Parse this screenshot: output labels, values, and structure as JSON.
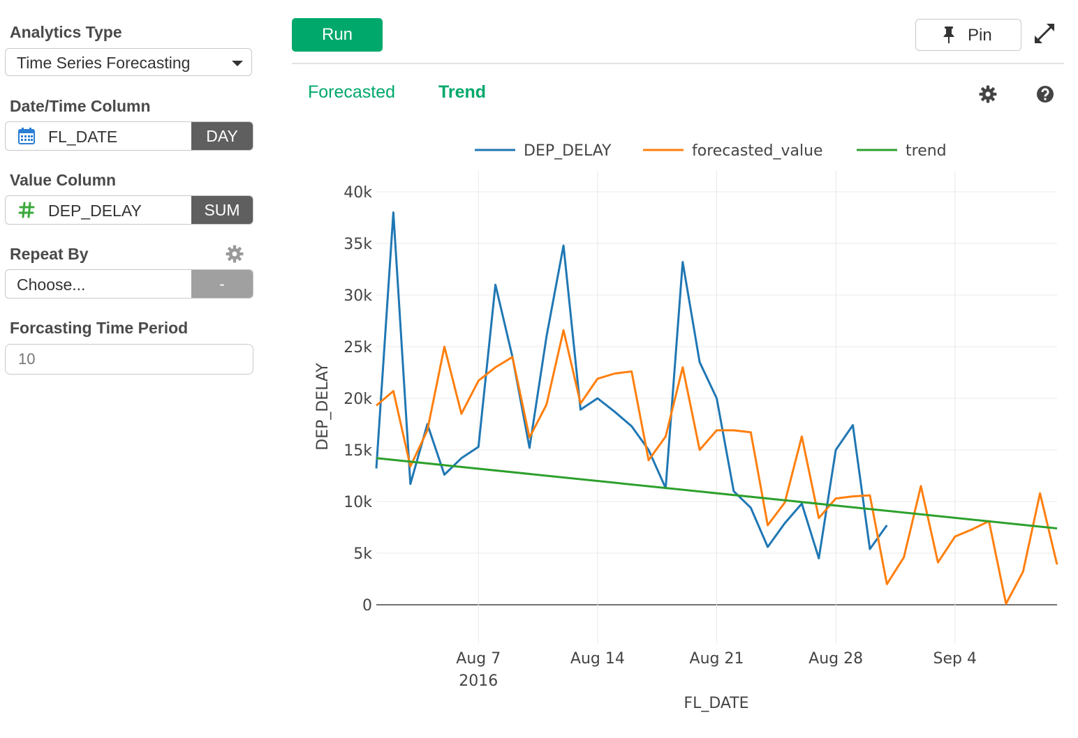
{
  "sidebar": {
    "analytics_type": {
      "label": "Analytics Type",
      "value": "Time Series Forecasting"
    },
    "datetime_column": {
      "label": "Date/Time Column",
      "value": "FL_DATE",
      "aggregation": "DAY",
      "icon": "calendar-icon"
    },
    "value_column": {
      "label": "Value Column",
      "value": "DEP_DELAY",
      "aggregation": "SUM",
      "icon": "hash-icon"
    },
    "repeat_by": {
      "label": "Repeat By",
      "value": "Choose...",
      "aggregation": "-"
    },
    "forecast_period": {
      "label": "Forcasting Time Period",
      "placeholder": "10"
    }
  },
  "toolbar": {
    "run_label": "Run",
    "pin_label": "Pin"
  },
  "tabs": [
    {
      "label": "Forecasted",
      "active": false
    },
    {
      "label": "Trend",
      "active": true
    }
  ],
  "colors": {
    "accent": "#00a86b",
    "series": [
      "#1f77b4",
      "#ff7f0e",
      "#2ca02c"
    ]
  },
  "chart_data": {
    "type": "line",
    "xlabel": "FL_DATE",
    "ylabel": "DEP_DELAY",
    "ylim": [
      0,
      40000
    ],
    "yticks": [
      0,
      5000,
      10000,
      15000,
      20000,
      25000,
      30000,
      35000,
      40000
    ],
    "ytick_labels": [
      "0",
      "5k",
      "10k",
      "15k",
      "20k",
      "25k",
      "30k",
      "35k",
      "40k"
    ],
    "xlim": [
      "2016-08-01",
      "2016-09-10"
    ],
    "xticks": [
      {
        "date": "2016-08-07",
        "label": "Aug 7",
        "sub": "2016"
      },
      {
        "date": "2016-08-14",
        "label": "Aug 14",
        "sub": ""
      },
      {
        "date": "2016-08-21",
        "label": "Aug 21",
        "sub": ""
      },
      {
        "date": "2016-08-28",
        "label": "Aug 28",
        "sub": ""
      },
      {
        "date": "2016-09-04",
        "label": "Sep 4",
        "sub": ""
      }
    ],
    "grid": true,
    "legend_position": "top",
    "series": [
      {
        "name": "DEP_DELAY",
        "x": [
          "2016-08-01",
          "2016-08-02",
          "2016-08-03",
          "2016-08-04",
          "2016-08-05",
          "2016-08-06",
          "2016-08-07",
          "2016-08-08",
          "2016-08-09",
          "2016-08-10",
          "2016-08-11",
          "2016-08-12",
          "2016-08-13",
          "2016-08-14",
          "2016-08-15",
          "2016-08-16",
          "2016-08-17",
          "2016-08-18",
          "2016-08-19",
          "2016-08-20",
          "2016-08-21",
          "2016-08-22",
          "2016-08-23",
          "2016-08-24",
          "2016-08-25",
          "2016-08-26",
          "2016-08-27",
          "2016-08-28",
          "2016-08-29",
          "2016-08-30",
          "2016-08-31"
        ],
        "values": [
          13200,
          38000,
          11700,
          17500,
          12600,
          14200,
          15300,
          31000,
          24000,
          15200,
          26000,
          34800,
          18900,
          20000,
          18700,
          17300,
          15000,
          11300,
          33200,
          23500,
          20000,
          11000,
          9400,
          5600,
          7900,
          9800,
          4500,
          15000,
          17400,
          5400,
          7700
        ]
      },
      {
        "name": "forecasted_value",
        "x": [
          "2016-08-01",
          "2016-08-02",
          "2016-08-03",
          "2016-08-04",
          "2016-08-05",
          "2016-08-06",
          "2016-08-07",
          "2016-08-08",
          "2016-08-09",
          "2016-08-10",
          "2016-08-11",
          "2016-08-12",
          "2016-08-13",
          "2016-08-14",
          "2016-08-15",
          "2016-08-16",
          "2016-08-17",
          "2016-08-18",
          "2016-08-19",
          "2016-08-20",
          "2016-08-21",
          "2016-08-22",
          "2016-08-23",
          "2016-08-24",
          "2016-08-25",
          "2016-08-26",
          "2016-08-27",
          "2016-08-28",
          "2016-08-29",
          "2016-08-30",
          "2016-08-31",
          "2016-09-01",
          "2016-09-02",
          "2016-09-03",
          "2016-09-04",
          "2016-09-05",
          "2016-09-06",
          "2016-09-07",
          "2016-09-08",
          "2016-09-09",
          "2016-09-10"
        ],
        "values": [
          19300,
          20700,
          13400,
          16900,
          25000,
          18500,
          21700,
          23000,
          24000,
          16200,
          19400,
          26600,
          19500,
          21900,
          22400,
          22600,
          14000,
          16300,
          23000,
          15000,
          16900,
          16900,
          16700,
          7700,
          9900,
          16300,
          8400,
          10300,
          10500,
          10600,
          2000,
          4600,
          11500,
          4100,
          6600,
          7300,
          8100,
          100,
          3200,
          10800,
          3900
        ]
      },
      {
        "name": "trend",
        "x": [
          "2016-08-01",
          "2016-09-10"
        ],
        "values": [
          14200,
          7400
        ]
      }
    ]
  }
}
